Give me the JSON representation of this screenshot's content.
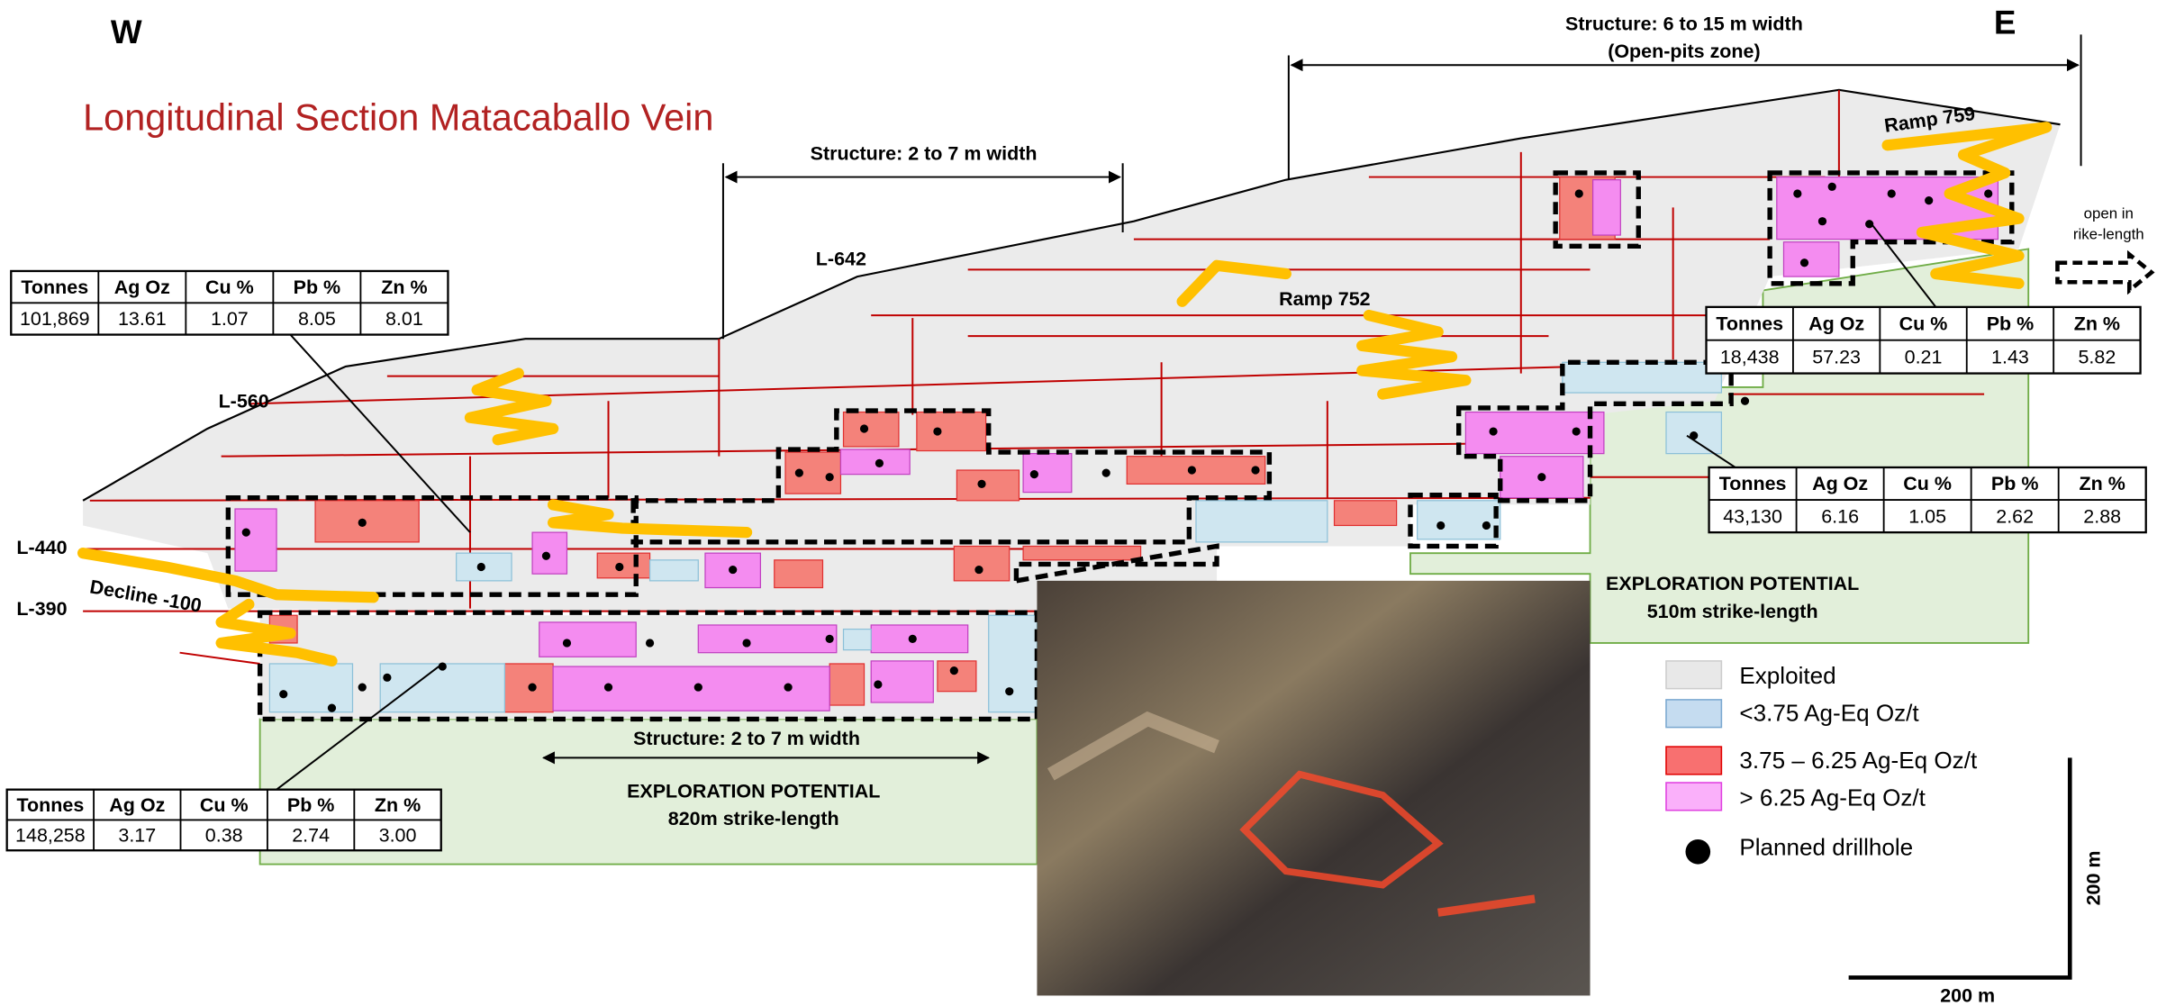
{
  "title": "Longitudinal Section Matacaballo Vein",
  "directions": {
    "west": "W",
    "east": "E"
  },
  "structures": {
    "open_pits": [
      "Structure: 6 to 15 m width",
      "(Open-pits zone)"
    ],
    "upper": "Structure: 2 to 7 m width",
    "lower": "Structure: 2 to 7 m width"
  },
  "workings": {
    "l642": "L-642",
    "l560": "L-560",
    "l440": "L-440",
    "l390": "L-390",
    "decline": "Decline -100",
    "ramp752": "Ramp 752",
    "ramp759": "Ramp 759"
  },
  "open_note": [
    "open in",
    "rike-length"
  ],
  "exploration": [
    {
      "title": "EXPLORATION POTENTIAL",
      "subtitle": "820m strike-length"
    },
    {
      "title": "EXPLORATION POTENTIAL",
      "subtitle": "510m strike-length"
    }
  ],
  "tables": [
    {
      "header": [
        "Tonnes",
        "Ag Oz",
        "Cu %",
        "Pb %",
        "Zn %"
      ],
      "row": [
        "101,869",
        "13.61",
        "1.07",
        "8.05",
        "8.01"
      ]
    },
    {
      "header": [
        "Tonnes",
        "Ag Oz",
        "Cu %",
        "Pb %",
        "Zn %"
      ],
      "row": [
        "18,438",
        "57.23",
        "0.21",
        "1.43",
        "5.82"
      ]
    },
    {
      "header": [
        "Tonnes",
        "Ag Oz",
        "Cu %",
        "Pb %",
        "Zn %"
      ],
      "row": [
        "43,130",
        "6.16",
        "1.05",
        "2.62",
        "2.88"
      ]
    },
    {
      "header": [
        "Tonnes",
        "Ag Oz",
        "Cu %",
        "Pb %",
        "Zn %"
      ],
      "row": [
        "148,258",
        "3.17",
        "0.38",
        "2.74",
        "3.00"
      ]
    }
  ],
  "legend": [
    "Exploited",
    "<3.75 Ag-Eq Oz/t",
    "3.75 – 6.25 Ag-Eq Oz/t",
    "> 6.25 Ag-Eq Oz/t",
    "Planned drillhole"
  ],
  "scale": {
    "vertical": "200 m",
    "horizontal": "200 m"
  }
}
